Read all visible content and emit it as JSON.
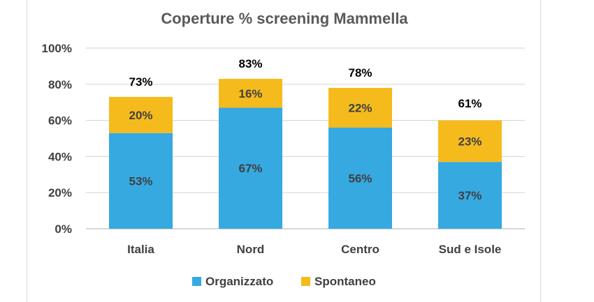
{
  "chart_data": {
    "type": "bar",
    "stacked": true,
    "title": "Coperture % screening Mammella",
    "categories": [
      "Italia",
      "Nord",
      "Centro",
      "Sud e Isole"
    ],
    "series": [
      {
        "name": "Organizzato",
        "values": [
          53,
          67,
          56,
          37
        ],
        "labels": [
          "53%",
          "67%",
          "56%",
          "37%"
        ],
        "color": "#36A9E1"
      },
      {
        "name": "Spontaneo",
        "values": [
          20,
          16,
          22,
          23
        ],
        "labels": [
          "20%",
          "16%",
          "22%",
          "23%"
        ],
        "color": "#F5BB1D"
      }
    ],
    "totals": [
      "73%",
      "83%",
      "78%",
      "61%"
    ],
    "total_values": [
      73,
      83,
      78,
      61
    ],
    "ylim": [
      0,
      100
    ],
    "yticks": [
      "0%",
      "20%",
      "40%",
      "60%",
      "80%",
      "100%"
    ],
    "ytick_values": [
      0,
      20,
      40,
      60,
      80,
      100
    ],
    "grid": true,
    "legend_position": "bottom"
  },
  "colors": {
    "grid": "#D9D9D9",
    "axis": "#BFBFBF"
  }
}
